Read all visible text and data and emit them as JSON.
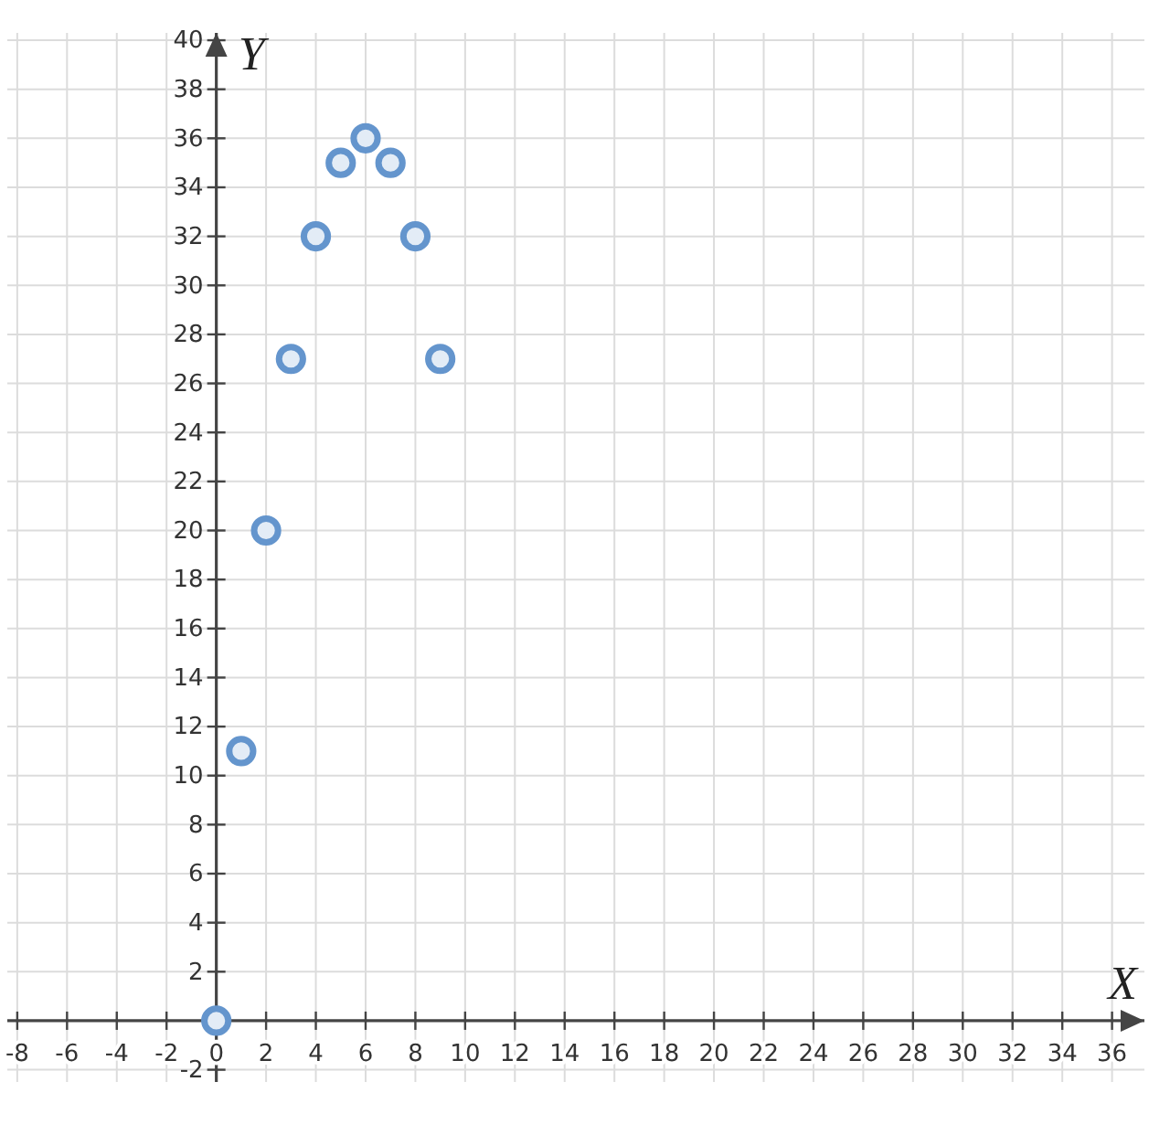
{
  "chart_data": {
    "type": "scatter",
    "xlabel": "X",
    "ylabel": "Y",
    "x": [
      0,
      1,
      2,
      3,
      4,
      5,
      6,
      7,
      8,
      9
    ],
    "values": [
      0,
      11,
      20,
      27,
      32,
      35,
      36,
      35,
      32,
      27
    ],
    "color": "#6495cd",
    "marker": "circle",
    "xlim": [
      -8.4,
      37.3
    ],
    "ylim": [
      -2.5,
      40.3
    ],
    "xticks": [
      -8,
      -6,
      -4,
      -2,
      0,
      2,
      4,
      6,
      8,
      10,
      12,
      14,
      16,
      18,
      20,
      22,
      24,
      26,
      28,
      30,
      32,
      34,
      36
    ],
    "yticks": [
      -2,
      {
        "value": 0,
        "label": null
      },
      2,
      4,
      6,
      8,
      10,
      12,
      14,
      16,
      18,
      20,
      22,
      24,
      26,
      28,
      30,
      32,
      34,
      36,
      38,
      40
    ],
    "grid": true
  }
}
